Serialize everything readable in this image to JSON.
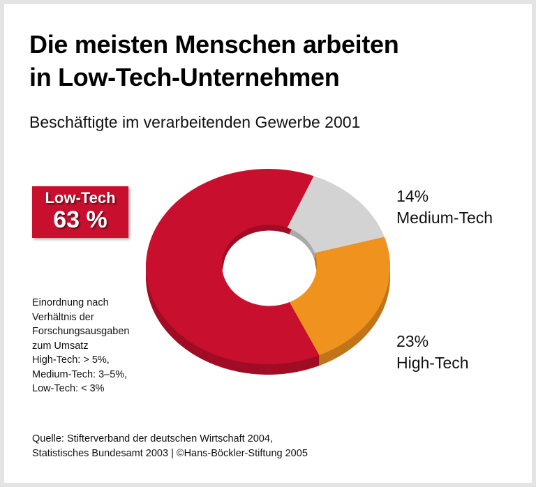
{
  "chart_data": {
    "type": "pie",
    "style": "3d-donut",
    "title": "Die meisten Menschen arbeiten in Low-Tech-Unternehmen",
    "title_lines": [
      "Die meisten Menschen arbeiten",
      "in Low-Tech-Unternehmen"
    ],
    "subtitle": "Beschäftigte im verarbeitenden Gewerbe 2001",
    "slices": [
      {
        "name": "Medium-Tech",
        "value": 14,
        "label": "14%",
        "color": "#d3d3d3"
      },
      {
        "name": "High-Tech",
        "value": 23,
        "label": "23%",
        "color": "#f0921e"
      },
      {
        "name": "Low-Tech",
        "value": 63,
        "label": "63 %",
        "color": "#c8102e"
      }
    ],
    "note_lines": [
      "Einordnung nach",
      "Verhältnis der",
      "Forschungsausgaben",
      "zum Umsatz",
      "High-Tech: > 5%,",
      "Medium-Tech: 3–5%,",
      "Low-Tech: < 3%"
    ],
    "source_lines": [
      "Quelle: Stifterverband der deutschen Wirtschaft 2004,",
      "Statistisches Bundesamt 2003 | ©Hans-Böckler-Stiftung 2005"
    ]
  }
}
